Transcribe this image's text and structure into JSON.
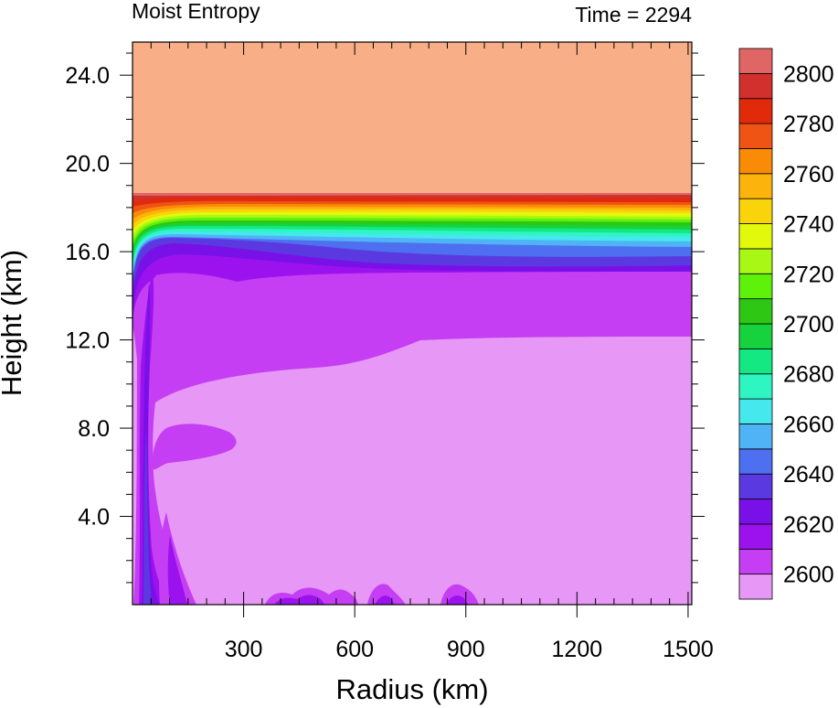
{
  "chart_data": {
    "type": "heatmap",
    "title_left": "Moist Entropy",
    "title_right": "Time = 2294",
    "xlabel": "Radius (km)",
    "ylabel": "Height (km)",
    "xlim": [
      0,
      1510
    ],
    "ylim": [
      0,
      25.5
    ],
    "x_ticks": [
      300,
      600,
      900,
      1200,
      1500
    ],
    "x_tick_labels": [
      "300",
      "600",
      "900",
      "1200",
      "1500"
    ],
    "y_ticks": [
      4,
      8,
      12,
      16,
      20,
      24
    ],
    "y_tick_labels": [
      "4.0",
      "8.0",
      "12.0",
      "16.0",
      "20.0",
      "24.0"
    ],
    "colorbar": {
      "levels": [
        2590,
        2600,
        2610,
        2620,
        2630,
        2640,
        2650,
        2660,
        2670,
        2680,
        2690,
        2700,
        2710,
        2720,
        2730,
        2740,
        2750,
        2760,
        2770,
        2780,
        2790,
        2800,
        2810
      ],
      "labels": [
        "2600",
        "2620",
        "2640",
        "2660",
        "2680",
        "2700",
        "2720",
        "2740",
        "2760",
        "2780",
        "2800"
      ],
      "label_values": [
        2600,
        2620,
        2640,
        2660,
        2680,
        2700,
        2720,
        2740,
        2760,
        2780,
        2800
      ],
      "colors": [
        "#e797f5",
        "#c53ef3",
        "#9c12ef",
        "#7a10e8",
        "#5a3ae0",
        "#4e70f0",
        "#4fb3f6",
        "#45e8ec",
        "#2ef5c1",
        "#13e882",
        "#16d23c",
        "#2ec714",
        "#5ef20a",
        "#a8f714",
        "#e3f90c",
        "#f9d40a",
        "#fcb40c",
        "#fa8b07",
        "#ef5414",
        "#e02a0a",
        "#d2302d",
        "#e06666",
        "#f8ae86"
      ]
    },
    "field_description": "Radius-height cross section of moist entropy; low values (~2600) through the lower troposphere, a sharp gradient band near 16-18.5 km, and high values (~2810) above 18.5 km."
  }
}
